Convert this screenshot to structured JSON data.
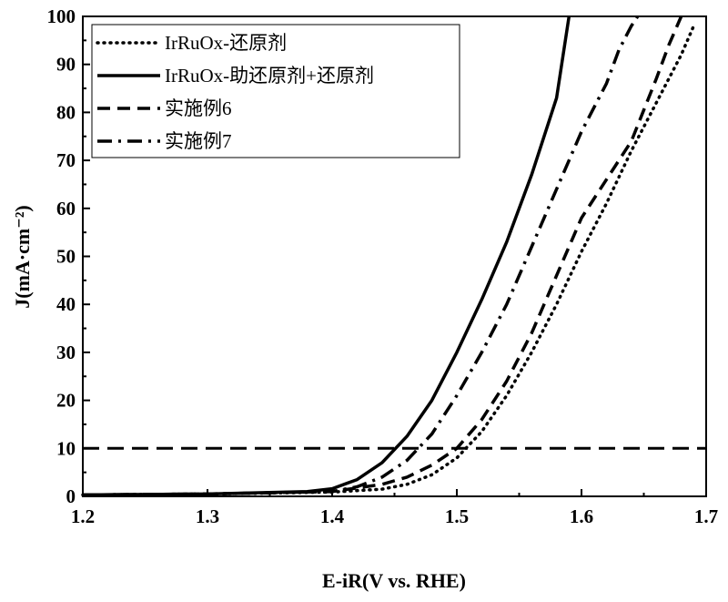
{
  "chart_data": {
    "type": "line",
    "xlabel": "E-iR(V vs. RHE)",
    "ylabel": "J(mA·cm⁻²)",
    "xlim": [
      1.2,
      1.7
    ],
    "ylim": [
      0,
      100
    ],
    "x_ticks": [
      "1.2",
      "1.3",
      "1.4",
      "1.5",
      "1.6",
      "1.7"
    ],
    "y_ticks": [
      "0",
      "10",
      "20",
      "30",
      "40",
      "50",
      "60",
      "70",
      "80",
      "90",
      "100"
    ],
    "grid": false,
    "legend_position": "top-left",
    "reference_line": {
      "y": 10,
      "style": "dashed"
    },
    "series": [
      {
        "name": "IrRuOx-还原剂",
        "style": "dotted",
        "x": [
          1.2,
          1.3,
          1.4,
          1.44,
          1.46,
          1.48,
          1.5,
          1.52,
          1.54,
          1.56,
          1.58,
          1.6,
          1.62,
          1.64,
          1.66,
          1.68,
          1.69
        ],
        "y": [
          0.3,
          0.5,
          0.9,
          1.5,
          2.5,
          4.5,
          8.0,
          13.5,
          21.0,
          30.0,
          40.0,
          51.0,
          61.0,
          72.0,
          82.0,
          92.0,
          98.0
        ]
      },
      {
        "name": "IrRuOx-助还原剂+还原剂",
        "style": "solid",
        "x": [
          1.2,
          1.3,
          1.38,
          1.4,
          1.42,
          1.44,
          1.46,
          1.48,
          1.5,
          1.52,
          1.54,
          1.56,
          1.58,
          1.59
        ],
        "y": [
          0.3,
          0.5,
          1.0,
          1.6,
          3.5,
          7.0,
          12.5,
          20.0,
          30.0,
          41.0,
          53.0,
          67.0,
          83.0,
          100.0
        ]
      },
      {
        "name": "实施例6",
        "style": "dashed",
        "x": [
          1.2,
          1.3,
          1.4,
          1.44,
          1.46,
          1.48,
          1.5,
          1.52,
          1.54,
          1.56,
          1.58,
          1.6,
          1.62,
          1.64,
          1.66,
          1.67,
          1.68
        ],
        "y": [
          0.3,
          0.5,
          1.0,
          2.5,
          4.0,
          6.5,
          10.0,
          16.0,
          24.0,
          34.0,
          46.0,
          58.0,
          66.0,
          74.0,
          87.0,
          94.0,
          100.0
        ]
      },
      {
        "name": "实施例7",
        "style": "dash-dot",
        "x": [
          1.2,
          1.3,
          1.4,
          1.42,
          1.44,
          1.46,
          1.48,
          1.5,
          1.52,
          1.54,
          1.56,
          1.58,
          1.6,
          1.62,
          1.63,
          1.64,
          1.645
        ],
        "y": [
          0.3,
          0.5,
          1.0,
          2.0,
          4.0,
          7.5,
          13.0,
          21.0,
          30.0,
          40.0,
          52.0,
          64.0,
          76.0,
          86.0,
          93.0,
          98.0,
          100.0
        ]
      }
    ]
  }
}
